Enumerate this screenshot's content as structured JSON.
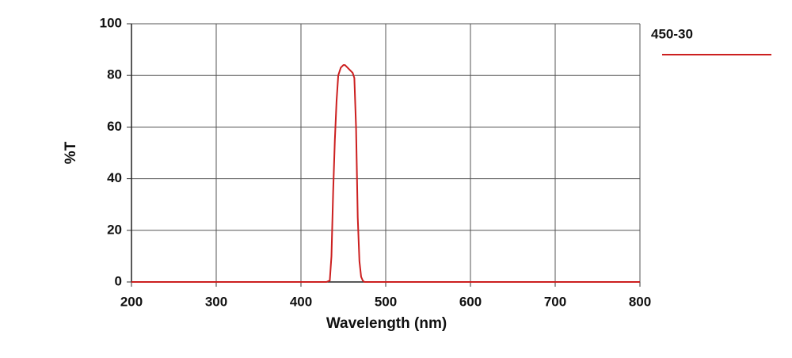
{
  "chart_data": {
    "type": "line",
    "x_label": "Wavelength (nm)",
    "y_label": "%T",
    "x": [
      200,
      430,
      434,
      436,
      438,
      440,
      442,
      444,
      447,
      450,
      452,
      455,
      458,
      461,
      463,
      465,
      467,
      469,
      471,
      473,
      475,
      800
    ],
    "series": [
      {
        "name": "450-30",
        "color": "#cc1f1f",
        "values": [
          0,
          0,
          0.5,
          10,
          35,
          55,
          70,
          80,
          83,
          84,
          84,
          83,
          82,
          81,
          79,
          60,
          25,
          8,
          2,
          0.5,
          0,
          0
        ]
      }
    ],
    "xlim": [
      200,
      800
    ],
    "xticks": [
      200,
      300,
      400,
      500,
      600,
      700,
      800
    ],
    "ylim": [
      0,
      100
    ],
    "yticks": [
      0,
      20,
      40,
      60,
      80,
      100
    ],
    "grid": true,
    "legend": "top-right"
  }
}
